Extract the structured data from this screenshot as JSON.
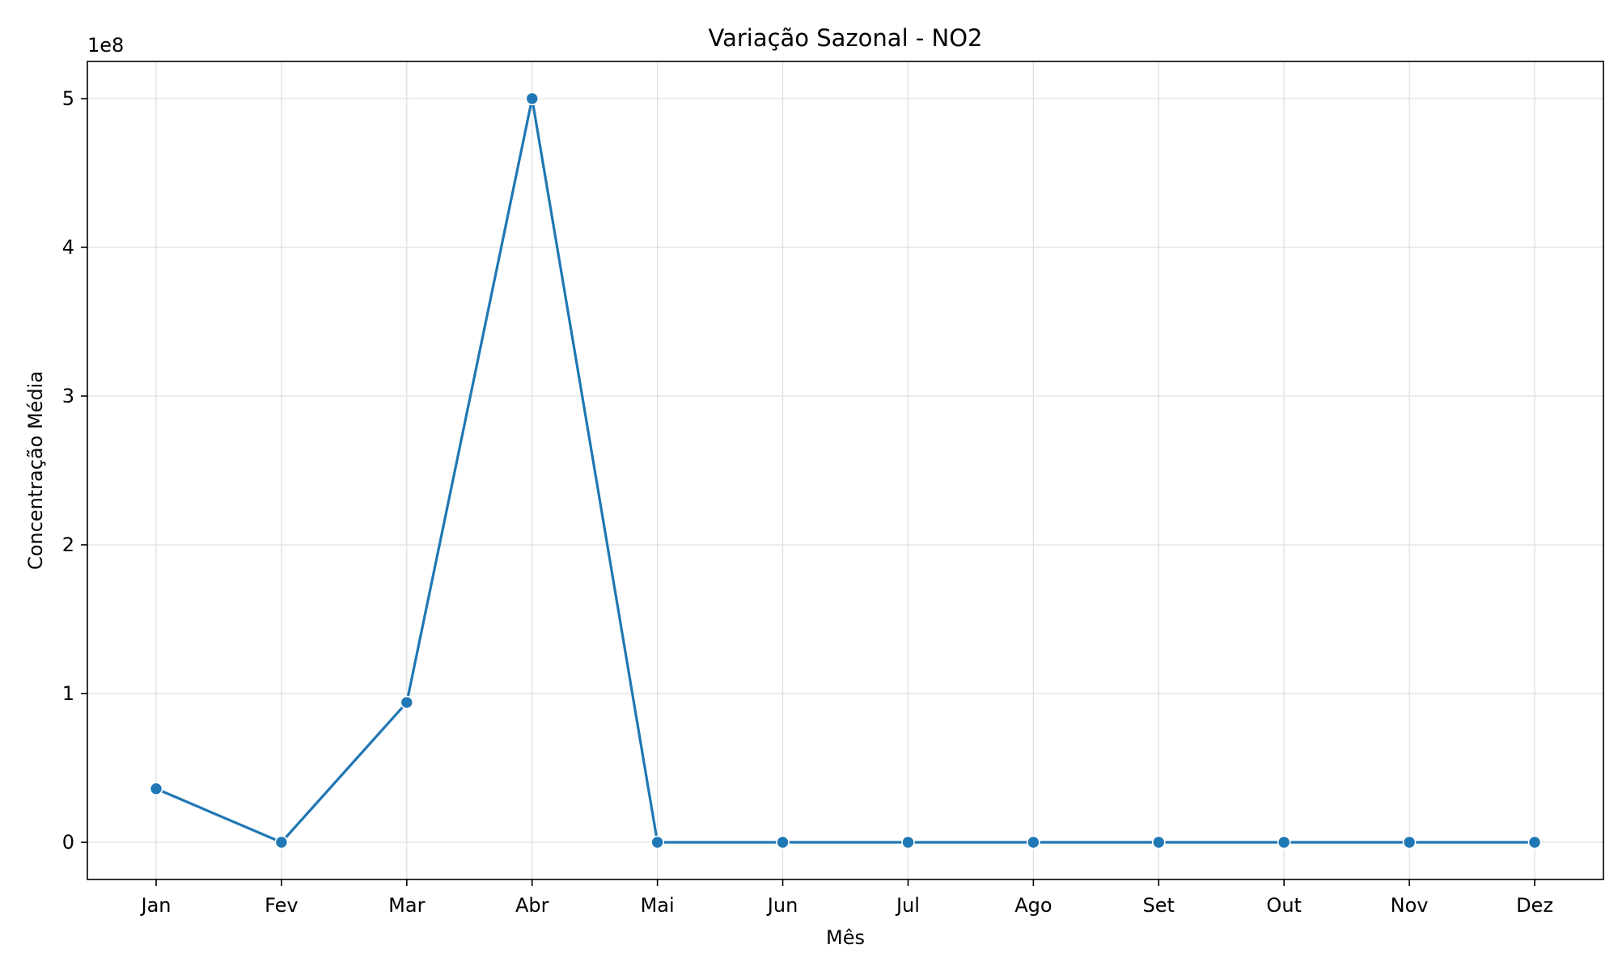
{
  "chart_data": {
    "type": "line",
    "title": "Variação Sazonal - NO2",
    "xlabel": "Mês",
    "ylabel": "Concentração Média",
    "y_offset_label": "1e8",
    "categories": [
      "Jan",
      "Fev",
      "Mar",
      "Abr",
      "Mai",
      "Jun",
      "Jul",
      "Ago",
      "Set",
      "Out",
      "Nov",
      "Dez"
    ],
    "series": [
      {
        "values": [
          36000000,
          0,
          94000000,
          500000000,
          0,
          0,
          0,
          0,
          0,
          0,
          0,
          0
        ],
        "color": "#1f77b4"
      }
    ],
    "yticks": [
      0,
      100000000,
      200000000,
      300000000,
      400000000,
      500000000
    ],
    "ytick_labels": [
      "0",
      "1",
      "2",
      "3",
      "4",
      "5"
    ],
    "ylim": [
      -25000000,
      525000000
    ],
    "grid": true
  }
}
